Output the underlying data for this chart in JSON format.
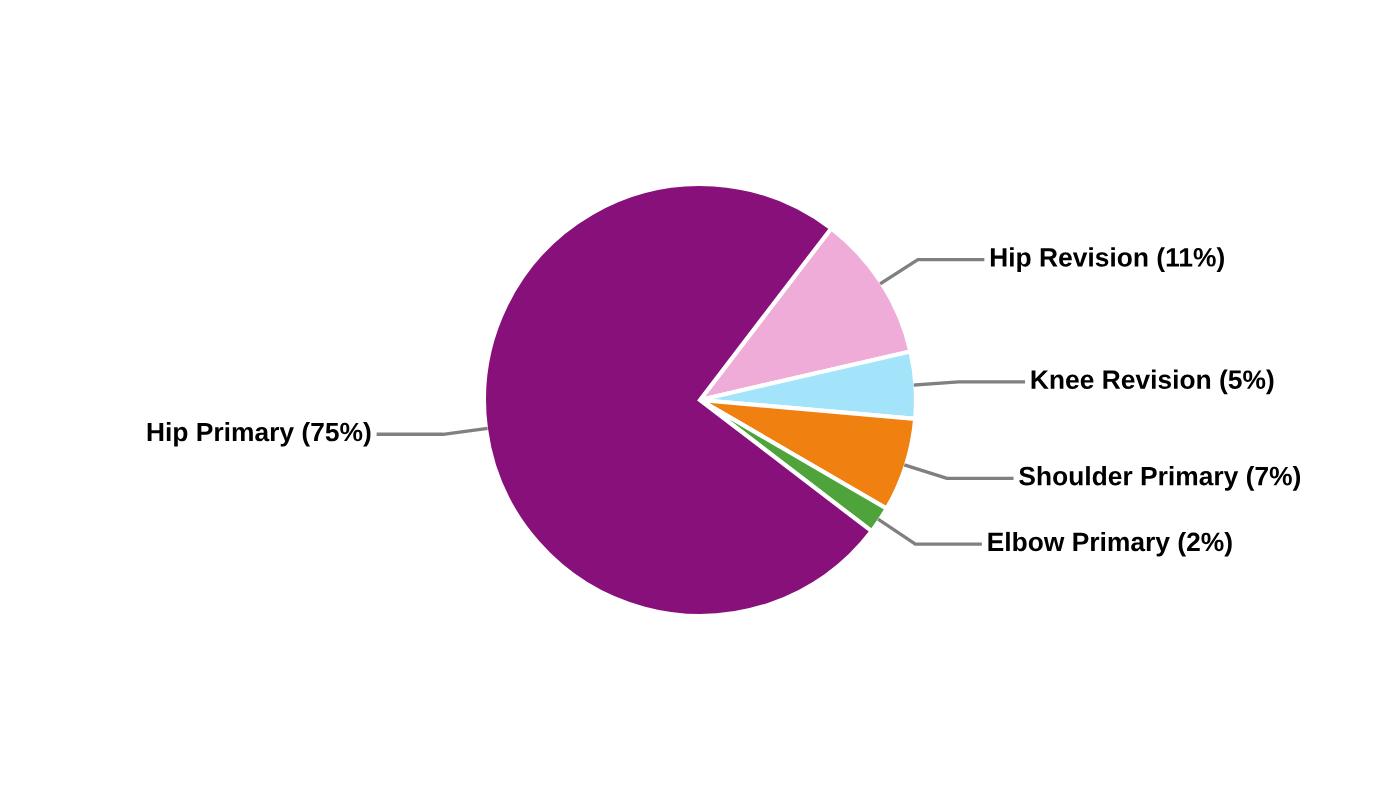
{
  "chart_data": {
    "type": "pie",
    "categories": [
      "Hip Revision (11%)",
      "Knee Revision (5%)",
      "Shoulder Primary (7%)",
      "Elbow Primary (2%)",
      "Hip Primary (75%)"
    ],
    "values": [
      11,
      5,
      7,
      2,
      75
    ],
    "colors": [
      "#f0acd8",
      "#a3e4fb",
      "#f08010",
      "#4ea43a",
      "#87107a"
    ],
    "legend": false
  }
}
